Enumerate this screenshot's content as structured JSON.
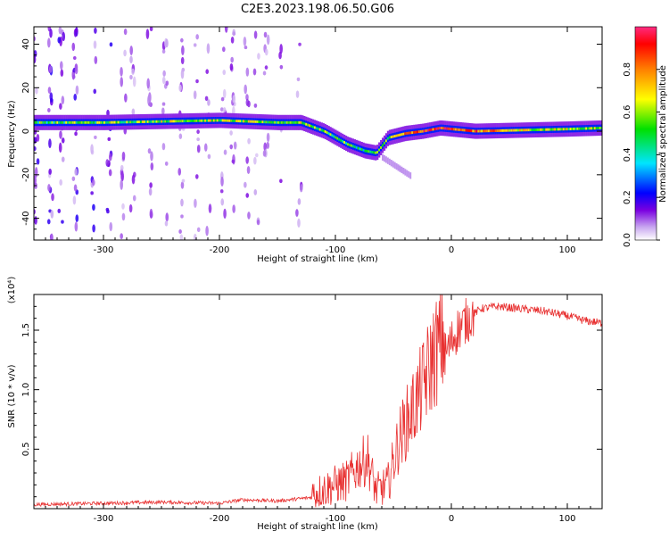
{
  "title": "C2E3.2023.198.06.50.G06",
  "chart_data": [
    {
      "type": "heatmap",
      "xlabel": "Height of straight line (km)",
      "ylabel": "Frequency (Hz)",
      "xlim": [
        -360,
        130
      ],
      "ylim": [
        -50,
        48
      ],
      "x_ticks": [
        -300,
        -200,
        -100,
        0,
        100
      ],
      "y_ticks": [
        -40,
        -20,
        0,
        20,
        40
      ],
      "colorbar": {
        "label": "Normalized spectral amplitude",
        "range": [
          0,
          1
        ],
        "ticks": [
          "0.0",
          "0.2",
          "0.4",
          "0.6",
          "0.8"
        ],
        "colormap": "rainbow"
      },
      "ridge": {
        "name": "",
        "x": [
          -360,
          -300,
          -250,
          -200,
          -150,
          -130,
          -110,
          -90,
          -75,
          -65,
          -55,
          -40,
          -25,
          -10,
          0,
          20,
          60,
          100,
          130
        ],
        "y": [
          4,
          4,
          4.5,
          5,
          4,
          4,
          0,
          -6,
          -9,
          -10,
          -3,
          -1,
          0,
          1.5,
          1,
          0,
          0.5,
          1,
          1.5
        ],
        "amplitude": [
          0.5,
          0.55,
          0.6,
          0.6,
          0.55,
          0.6,
          0.55,
          0.5,
          0.45,
          0.5,
          0.6,
          0.75,
          0.85,
          0.9,
          0.9,
          0.8,
          0.65,
          0.6,
          0.55
        ]
      }
    },
    {
      "type": "line",
      "xlabel": "Height of straight line (km)",
      "ylabel": "SNR (10 * v/v)",
      "y_multiplier": "(x10⁴)",
      "xlim": [
        -360,
        130
      ],
      "ylim": [
        0,
        1.8
      ],
      "x_ticks": [
        -300,
        -200,
        -100,
        0,
        100
      ],
      "y_ticks": [
        0.5,
        1.0,
        1.5
      ],
      "y_tick_labels": [
        "0.5",
        "1.0",
        "1.5"
      ],
      "color": "#e83030",
      "series": [
        {
          "name": "",
          "x": [
            -360,
            -300,
            -250,
            -200,
            -180,
            -150,
            -120,
            -100,
            -90,
            -80,
            -72,
            -65,
            -55,
            -45,
            -35,
            -25,
            -15,
            -5,
            5,
            15,
            25,
            40,
            60,
            80,
            100,
            115,
            130
          ],
          "values": [
            0.02,
            0.03,
            0.04,
            0.03,
            0.06,
            0.05,
            0.08,
            0.15,
            0.18,
            0.3,
            0.35,
            0.1,
            0.15,
            0.5,
            0.7,
            0.9,
            1.15,
            1.3,
            1.5,
            1.6,
            1.68,
            1.7,
            1.68,
            1.66,
            1.62,
            1.58,
            1.56
          ]
        }
      ]
    }
  ]
}
